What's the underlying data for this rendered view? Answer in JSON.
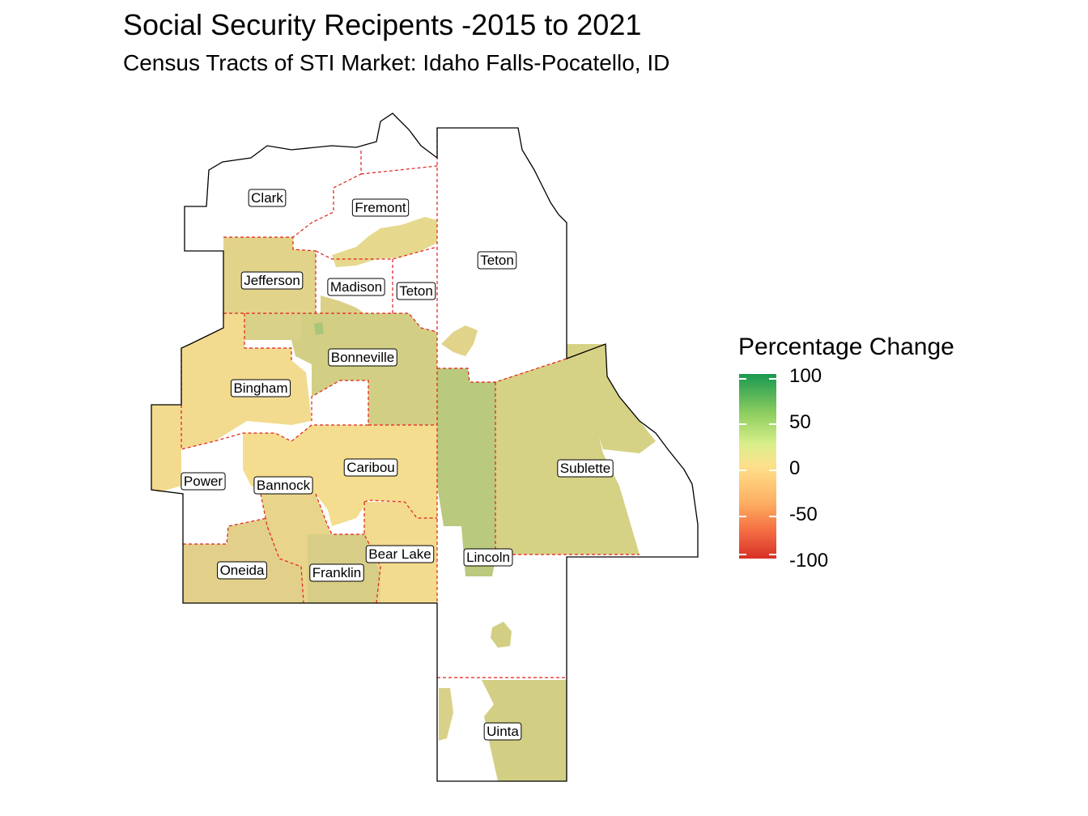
{
  "title": "Social Security Recipents -2015 to 2021",
  "subtitle": "Census Tracts of STI Market: Idaho Falls-Pocatello, ID",
  "legend": {
    "title": "Percentage Change",
    "ticks": [
      "100",
      "50",
      "0",
      "-50",
      "-100"
    ],
    "colors": {
      "high": "#1a9850",
      "mid_high": "#91cf60",
      "mid": "#fee08b",
      "mid_low": "#fdae61",
      "low": "#d73027"
    }
  },
  "counties": [
    {
      "name": "Clark"
    },
    {
      "name": "Fremont"
    },
    {
      "name": "Teton"
    },
    {
      "name": "Jefferson"
    },
    {
      "name": "Madison"
    },
    {
      "name": "Teton"
    },
    {
      "name": "Bonneville"
    },
    {
      "name": "Bingham"
    },
    {
      "name": "Caribou"
    },
    {
      "name": "Sublette"
    },
    {
      "name": "Power"
    },
    {
      "name": "Bannock"
    },
    {
      "name": "Bear Lake"
    },
    {
      "name": "Lincoln"
    },
    {
      "name": "Oneida"
    },
    {
      "name": "Franklin"
    },
    {
      "name": "Uinta"
    }
  ]
}
